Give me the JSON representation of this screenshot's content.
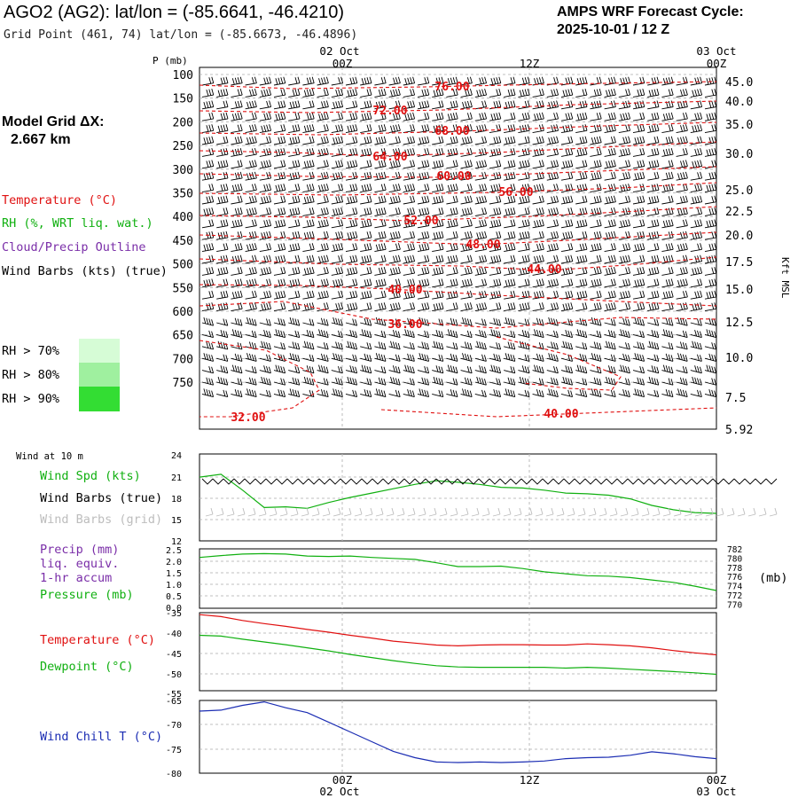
{
  "header": {
    "title": "AGO2 (AG2):  lat/lon = (-85.6641, -46.4210)",
    "grid_point": "Grid Point (461, 74) lat/lon = (-85.6673, -46.4896)",
    "amps_line1": "AMPS WRF Forecast Cycle:",
    "amps_line2": "2025-10-01 / 12  Z",
    "model_grid_label": "Model Grid ΔX:",
    "model_grid_value": "2.667 km"
  },
  "time_axis": {
    "date_label_top": "02 Oct",
    "date_label_top_right": "03 Oct",
    "date_label_bottom": "02 Oct",
    "date_label_bottom_right": "03 Oct",
    "ticks": [
      "00Z",
      "12Z",
      "00Z"
    ]
  },
  "legend_upper": {
    "temperature": "Temperature (°C)",
    "rh": "RH (%, WRT liq. wat.)",
    "cloud": "Cloud/Precip Outline",
    "wind": "Wind Barbs (kts) (true)",
    "rh70": "RH > 70%",
    "rh80": "RH > 80%",
    "rh90": "RH > 90%",
    "colors": {
      "rh70": "#d6fcd6",
      "rh80": "#9ff09f",
      "rh90": "#33dd33"
    }
  },
  "legend_wind10": {
    "title": "Wind at 10 m",
    "spd": "Wind Spd (kts)",
    "barbs_true": "Wind Barbs (true)",
    "barbs_grid": "Wind Barbs (grid)"
  },
  "legend_precip": {
    "l1": "Precip (mm)",
    "l2": "liq. equiv.",
    "l3": "1-hr accum",
    "l4": "Pressure (mb)",
    "mb": "(mb)"
  },
  "legend_temp": {
    "temp": "Temperature (°C)",
    "dew": "Dewpoint (°C)"
  },
  "legend_chill": {
    "chill": "Wind Chill T (°C)"
  },
  "chart_data": [
    {
      "type": "contour",
      "name": "cross-section",
      "yaxis_label": "P (mb)",
      "p_ticks": [
        "100",
        "150",
        "200",
        "250",
        "300",
        "350",
        "400",
        "450",
        "500",
        "550",
        "600",
        "650",
        "700",
        "750"
      ],
      "kft_ticks": [
        "45.0",
        "40.0",
        "35.0",
        "30.0",
        "25.0",
        "22.5",
        "20.0",
        "17.5",
        "15.0",
        "12.5",
        "10.0",
        "7.5",
        "5.92"
      ],
      "kft_label": "Kft MSL",
      "contour_labels": [
        "76.00",
        "72.00",
        "68.00",
        "64.00",
        "60.00",
        "56.00",
        "52.00",
        "48.00",
        "44.00",
        "40.00",
        "36.00",
        "32.00",
        "40.00"
      ],
      "colors": {
        "temp": "#e01010",
        "barb": "#000000"
      }
    },
    {
      "type": "line",
      "name": "wind10",
      "y_ticks": [
        "24",
        "21",
        "18",
        "15",
        "12"
      ],
      "ylim": [
        12,
        24
      ],
      "x": [
        0,
        1,
        2,
        3,
        4,
        5,
        6,
        7,
        8,
        9,
        10,
        11,
        12,
        13,
        14,
        15,
        16,
        17,
        18,
        19,
        20,
        21,
        22,
        23,
        24
      ],
      "series": [
        {
          "name": "Wind Spd (kts)",
          "color": "#10b010",
          "values": [
            20.8,
            21.2,
            19.0,
            16.6,
            16.7,
            16.5,
            17.3,
            18.0,
            18.6,
            19.2,
            19.8,
            20.3,
            20.1,
            19.8,
            19.4,
            19.3,
            19.0,
            18.6,
            18.5,
            18.3,
            17.8,
            16.9,
            16.3,
            15.9,
            15.8
          ]
        }
      ]
    },
    {
      "type": "line",
      "name": "precip-pressure",
      "y_ticks": [
        "2.5",
        "2.0",
        "1.5",
        "1.0",
        "0.5",
        "0.0"
      ],
      "ylim": [
        0,
        2.7
      ],
      "y2_ticks": [
        "782",
        "780",
        "778",
        "776",
        "774",
        "772",
        "770"
      ],
      "y2lim": [
        770,
        782.4
      ],
      "x": [
        0,
        1,
        2,
        3,
        4,
        5,
        6,
        7,
        8,
        9,
        10,
        11,
        12,
        13,
        14,
        15,
        16,
        17,
        18,
        19,
        20,
        21,
        22,
        23,
        24
      ],
      "series": [
        {
          "name": "Pressure (mb)",
          "color": "#10b010",
          "axis": "y2",
          "values": [
            780.6,
            781.0,
            781.3,
            781.4,
            781.3,
            780.9,
            780.8,
            780.9,
            780.6,
            780.4,
            780.2,
            779.5,
            778.7,
            778.7,
            778.8,
            778.3,
            777.6,
            777.2,
            776.8,
            776.7,
            776.4,
            775.9,
            775.4,
            774.6,
            773.7
          ]
        }
      ]
    },
    {
      "type": "line",
      "name": "temperature",
      "y_ticks": [
        "-35",
        "-40",
        "-45",
        "-50",
        "-55"
      ],
      "ylim": [
        -55,
        -35
      ],
      "x": [
        0,
        1,
        2,
        3,
        4,
        5,
        6,
        7,
        8,
        9,
        10,
        11,
        12,
        13,
        14,
        15,
        16,
        17,
        18,
        19,
        20,
        21,
        22,
        23,
        24
      ],
      "series": [
        {
          "name": "Temperature (°C)",
          "color": "#e01010",
          "values": [
            -35.5,
            -36.0,
            -37.0,
            -37.8,
            -38.5,
            -39.3,
            -40.0,
            -40.8,
            -41.5,
            -42.3,
            -42.8,
            -43.3,
            -43.5,
            -43.3,
            -43.2,
            -43.2,
            -43.3,
            -43.3,
            -43.0,
            -43.2,
            -43.5,
            -44.0,
            -44.7,
            -45.3,
            -45.8
          ]
        },
        {
          "name": "Dewpoint (°C)",
          "color": "#10b010",
          "values": [
            -40.8,
            -41.0,
            -41.8,
            -42.5,
            -43.2,
            -44.0,
            -44.8,
            -45.7,
            -46.5,
            -47.3,
            -48.0,
            -48.6,
            -48.9,
            -49.0,
            -49.0,
            -49.0,
            -49.0,
            -49.2,
            -49.0,
            -49.2,
            -49.5,
            -49.8,
            -50.1,
            -50.4,
            -50.8
          ]
        }
      ]
    },
    {
      "type": "line",
      "name": "wind-chill",
      "y_ticks": [
        "-65",
        "-70",
        "-75",
        "-80"
      ],
      "ylim": [
        -80,
        -65
      ],
      "x": [
        0,
        1,
        2,
        3,
        4,
        5,
        6,
        7,
        8,
        9,
        10,
        11,
        12,
        13,
        14,
        15,
        16,
        17,
        18,
        19,
        20,
        21,
        22,
        23,
        24
      ],
      "series": [
        {
          "name": "Wind Chill T (°C)",
          "color": "#1b2db3",
          "values": [
            -67.2,
            -67.0,
            -66.0,
            -65.3,
            -66.5,
            -67.5,
            -69.5,
            -71.5,
            -73.5,
            -75.5,
            -76.8,
            -77.7,
            -77.8,
            -77.7,
            -77.8,
            -77.7,
            -77.5,
            -77.0,
            -76.8,
            -76.7,
            -76.3,
            -75.6,
            -76.0,
            -76.6,
            -77.0
          ]
        }
      ]
    }
  ]
}
